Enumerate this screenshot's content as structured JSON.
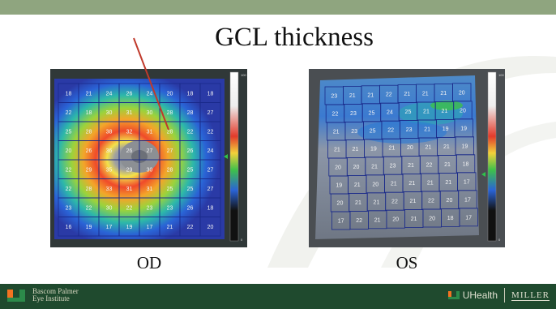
{
  "slide": {
    "title": "GCL thickness",
    "left_label": "OD",
    "right_label": "OS"
  },
  "footer": {
    "left_logo_line1": "Bascom Palmer",
    "left_logo_line2": "Eye Institute",
    "uhealth_text": "UHealth",
    "miller_text": "MILLER"
  },
  "od_map": {
    "scale_min": "0",
    "scale_max": "100",
    "grid_values": [
      [
        "18",
        "21",
        "24",
        "26",
        "24",
        "20",
        "18",
        "18"
      ],
      [
        "22",
        "18",
        "30",
        "31",
        "30",
        "28",
        "28",
        "27"
      ],
      [
        "25",
        "28",
        "38",
        "32",
        "31",
        "28",
        "22",
        "22"
      ],
      [
        "20",
        "26",
        "36",
        "26",
        "27",
        "27",
        "26",
        "24"
      ],
      [
        "22",
        "29",
        "35",
        "29",
        "30",
        "28",
        "25",
        "27"
      ],
      [
        "22",
        "28",
        "33",
        "31",
        "31",
        "25",
        "25",
        "27"
      ],
      [
        "23",
        "22",
        "30",
        "22",
        "23",
        "23",
        "26",
        "18"
      ],
      [
        "16",
        "19",
        "17",
        "19",
        "17",
        "21",
        "22",
        "20"
      ]
    ]
  },
  "os_map": {
    "scale_min": "0",
    "scale_max": "100",
    "grid_values": [
      [
        "23",
        "21",
        "21",
        "22",
        "21",
        "21",
        "21",
        "20"
      ],
      [
        "22",
        "23",
        "25",
        "24",
        "25",
        "21",
        "21",
        "20"
      ],
      [
        "21",
        "23",
        "25",
        "22",
        "23",
        "21",
        "19",
        "19"
      ],
      [
        "21",
        "21",
        "19",
        "21",
        "20",
        "21",
        "21",
        "19"
      ],
      [
        "20",
        "20",
        "21",
        "23",
        "21",
        "22",
        "21",
        "18"
      ],
      [
        "19",
        "21",
        "20",
        "21",
        "21",
        "21",
        "21",
        "17"
      ],
      [
        "20",
        "21",
        "21",
        "22",
        "21",
        "22",
        "20",
        "17"
      ],
      [
        "17",
        "22",
        "21",
        "20",
        "21",
        "20",
        "18",
        "17"
      ]
    ]
  },
  "colors": {
    "top_bar": "#8fa57f",
    "footer": "#1f4a2e",
    "arrow": "#c0392b"
  }
}
